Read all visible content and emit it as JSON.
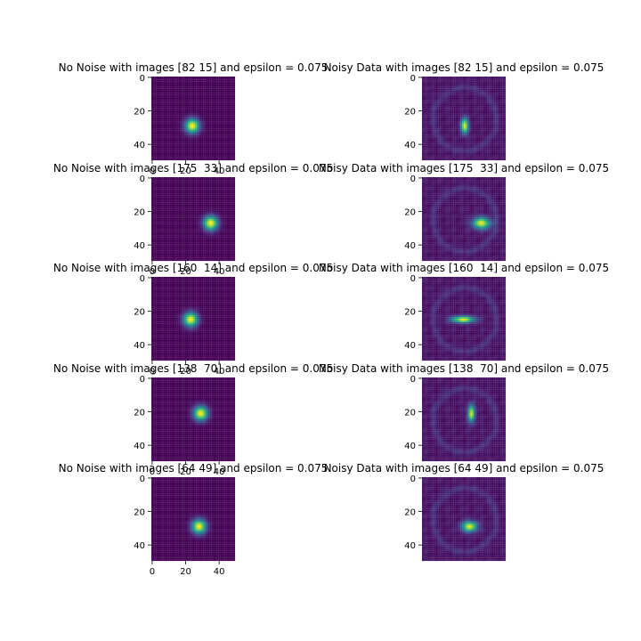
{
  "chart_data": {
    "type": "heatmap",
    "colormap": "viridis",
    "grid": false,
    "panels": [
      {
        "title": "No Noise with images [82 15] and epsilon = 0.075",
        "column": "left",
        "row": 0,
        "peak": [
          24,
          29
        ],
        "spread": [
          3,
          3
        ],
        "noisy": false,
        "show_xticks": true
      },
      {
        "title": "Noisy Data with images [82 15] and epsilon = 0.075",
        "column": "right",
        "row": 0,
        "peak": [
          25,
          29
        ],
        "spread": [
          1.6,
          3.2
        ],
        "noisy": true,
        "show_xticks": false
      },
      {
        "title": "No Noise with images [175  33] and epsilon = 0.075",
        "column": "left",
        "row": 1,
        "peak": [
          35,
          27
        ],
        "spread": [
          3,
          3
        ],
        "noisy": false,
        "show_xticks": true
      },
      {
        "title": "Noisy Data with images [175  33] and epsilon = 0.075",
        "column": "right",
        "row": 1,
        "peak": [
          35,
          27
        ],
        "spread": [
          3.6,
          2.4
        ],
        "noisy": true,
        "show_xticks": false
      },
      {
        "title": "No Noise with images [160  14] and epsilon = 0.075",
        "column": "left",
        "row": 2,
        "peak": [
          23,
          25
        ],
        "spread": [
          3,
          3
        ],
        "noisy": false,
        "show_xticks": true
      },
      {
        "title": "Noisy Data with images [160  14] and epsilon = 0.075",
        "column": "right",
        "row": 2,
        "peak": [
          24,
          25
        ],
        "spread": [
          4.8,
          1.4
        ],
        "noisy": true,
        "show_xticks": false
      },
      {
        "title": "No Noise with images [138  70] and epsilon = 0.075",
        "column": "left",
        "row": 3,
        "peak": [
          29,
          21
        ],
        "spread": [
          3,
          3
        ],
        "noisy": false,
        "show_xticks": true
      },
      {
        "title": "Noisy Data with images [138  70] and epsilon = 0.075",
        "column": "right",
        "row": 3,
        "peak": [
          29,
          21
        ],
        "spread": [
          1.4,
          3.6
        ],
        "noisy": true,
        "show_xticks": false
      },
      {
        "title": "No Noise with images [64 49] and epsilon = 0.075",
        "column": "left",
        "row": 4,
        "peak": [
          28,
          29
        ],
        "spread": [
          3,
          3
        ],
        "noisy": false,
        "show_xticks": true
      },
      {
        "title": "Noisy Data with images [64 49] and epsilon = 0.075",
        "column": "right",
        "row": 4,
        "peak": [
          28,
          29
        ],
        "spread": [
          3.2,
          2.2
        ],
        "noisy": true,
        "show_xticks": false
      }
    ],
    "image_size": 50,
    "xlim": [
      0,
      50
    ],
    "ylim": [
      50,
      0
    ],
    "xticks": [
      "0",
      "20",
      "40"
    ],
    "yticks": [
      "0",
      "20",
      "40"
    ]
  }
}
